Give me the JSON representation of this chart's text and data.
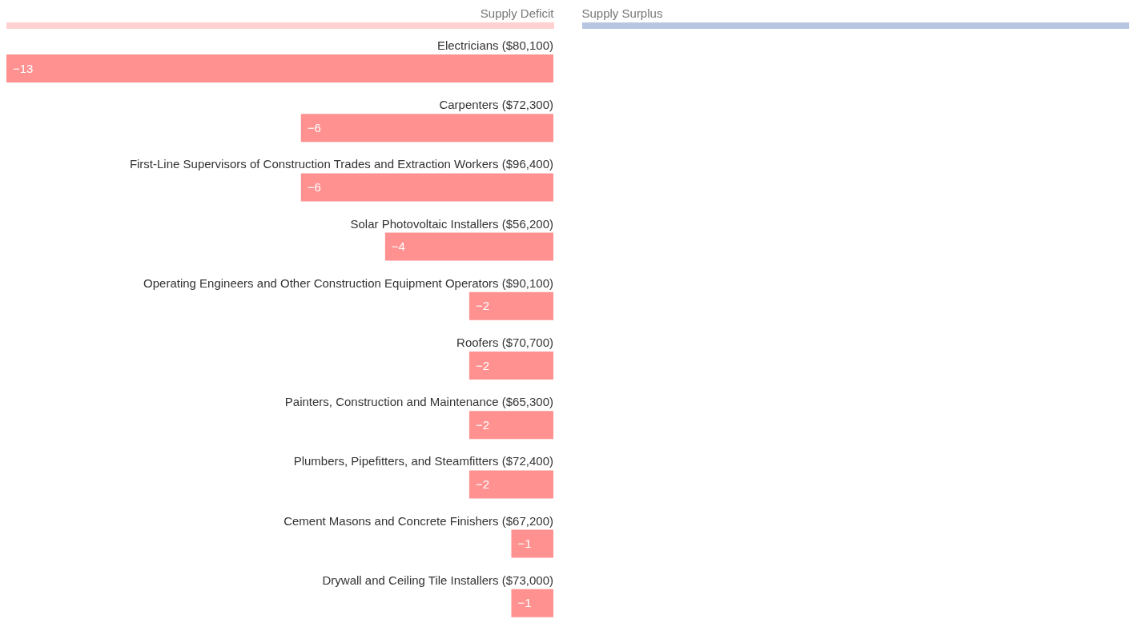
{
  "chart_data": {
    "type": "bar",
    "orientation": "horizontal",
    "annotations": [
      "Supply Deficit",
      "Supply Surplus"
    ],
    "categories": [
      "Electricians ($80,100)",
      "Carpenters ($72,300)",
      "First-Line Supervisors of Construction Trades and Extraction Workers ($96,400)",
      "Solar Photovoltaic Installers ($56,200)",
      "Operating Engineers and Other Construction Equipment Operators ($90,100)",
      "Roofers ($70,700)",
      "Painters, Construction and Maintenance ($65,300)",
      "Plumbers, Pipefitters, and Steamfitters ($72,400)",
      "Cement Masons and Concrete Finishers ($67,200)",
      "Drywall and Ceiling Tile Installers ($73,000)"
    ],
    "values": [
      -13,
      -6,
      -6,
      -4,
      -2,
      -2,
      -2,
      -2,
      -1,
      -1
    ],
    "color": "#ff9191",
    "data_labels": true
  }
}
